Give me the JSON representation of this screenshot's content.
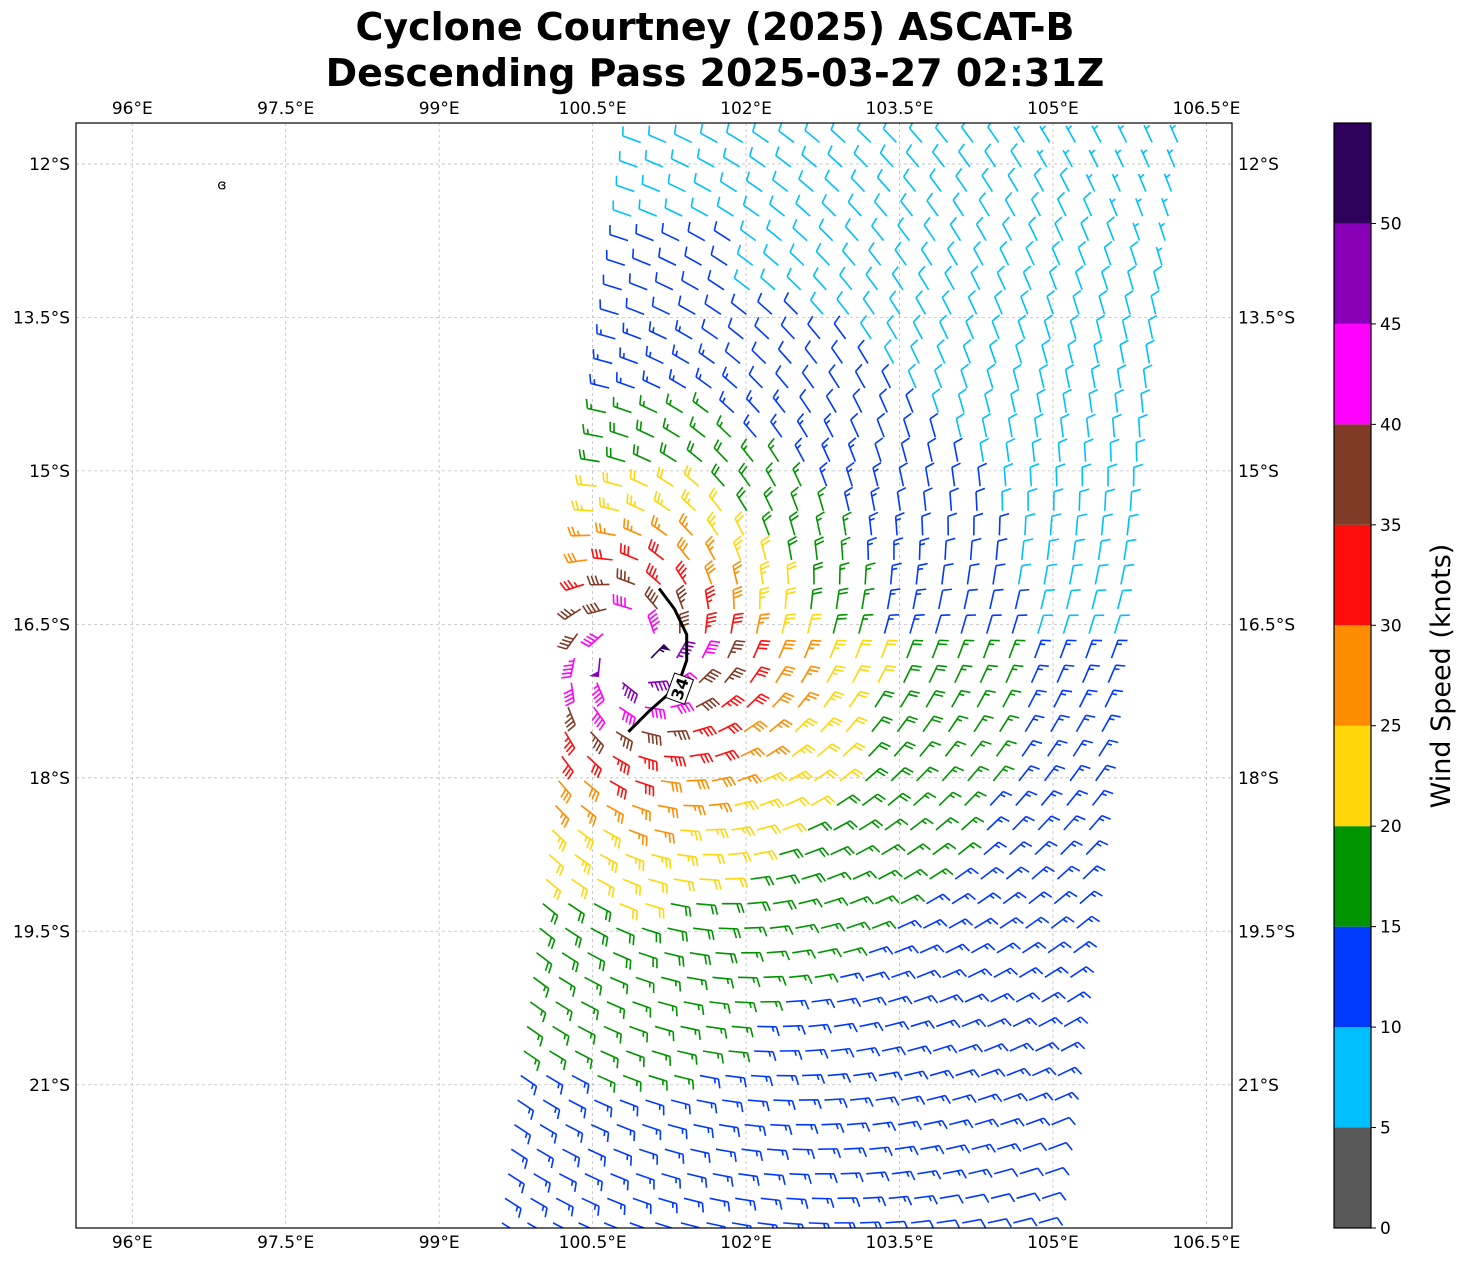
{
  "title": {
    "line1": "Cyclone Courtney (2025) ASCAT-B",
    "line2": "Descending Pass 2025-03-27 02:31Z"
  },
  "map": {
    "lon_range": [
      95.45,
      106.75
    ],
    "lat_range": [
      -22.4,
      -11.6
    ],
    "lon_ticks": [
      96,
      97.5,
      99,
      100.5,
      102,
      103.5,
      105,
      106.5
    ],
    "lon_tick_labels": [
      "96°E",
      "97.5°E",
      "99°E",
      "100.5°E",
      "102°E",
      "103.5°E",
      "105°E",
      "106.5°E"
    ],
    "lat_ticks": [
      -12,
      -13.5,
      -15,
      -16.5,
      -18,
      -19.5,
      -21
    ],
    "lat_tick_labels": [
      "12°S",
      "13.5°S",
      "15°S",
      "16.5°S",
      "18°S",
      "19.5°S",
      "21°S"
    ],
    "gridlines": true,
    "storm_center": {
      "lon": 100.9,
      "lat": -16.75
    },
    "swath_edges": {
      "west_south": 99.6,
      "west_north": 101.0,
      "east_north": 106.5,
      "east_south": 105.0
    },
    "contour_34kt": {
      "label": "34",
      "points": [
        [
          101.15,
          -16.15
        ],
        [
          101.3,
          -16.35
        ],
        [
          101.42,
          -16.6
        ],
        [
          101.42,
          -16.85
        ],
        [
          101.35,
          -17.05
        ],
        [
          101.22,
          -17.2
        ],
        [
          101.05,
          -17.35
        ],
        [
          100.85,
          -17.55
        ]
      ]
    },
    "island": {
      "lon": 96.88,
      "lat": -12.17,
      "glyph": "ɞ"
    }
  },
  "colorbar": {
    "label": "Wind Speed (knots)",
    "ticks": [
      "0",
      "5",
      "10",
      "15",
      "20",
      "25",
      "30",
      "35",
      "40",
      "45",
      "50"
    ],
    "bins": [
      {
        "min": 0,
        "max": 5,
        "color": "#595959"
      },
      {
        "min": 5,
        "max": 10,
        "color": "#00bfff"
      },
      {
        "min": 10,
        "max": 15,
        "color": "#0039ff"
      },
      {
        "min": 15,
        "max": 20,
        "color": "#009400"
      },
      {
        "min": 20,
        "max": 25,
        "color": "#ffd60a"
      },
      {
        "min": 25,
        "max": 30,
        "color": "#ff8c00"
      },
      {
        "min": 30,
        "max": 35,
        "color": "#ff0d0d"
      },
      {
        "min": 35,
        "max": 40,
        "color": "#7f3b26"
      },
      {
        "min": 40,
        "max": 45,
        "color": "#ff00ff"
      },
      {
        "min": 45,
        "max": 50,
        "color": "#8800b8"
      },
      {
        "min": 50,
        "max": 55,
        "color": "#2d005c"
      }
    ]
  }
}
